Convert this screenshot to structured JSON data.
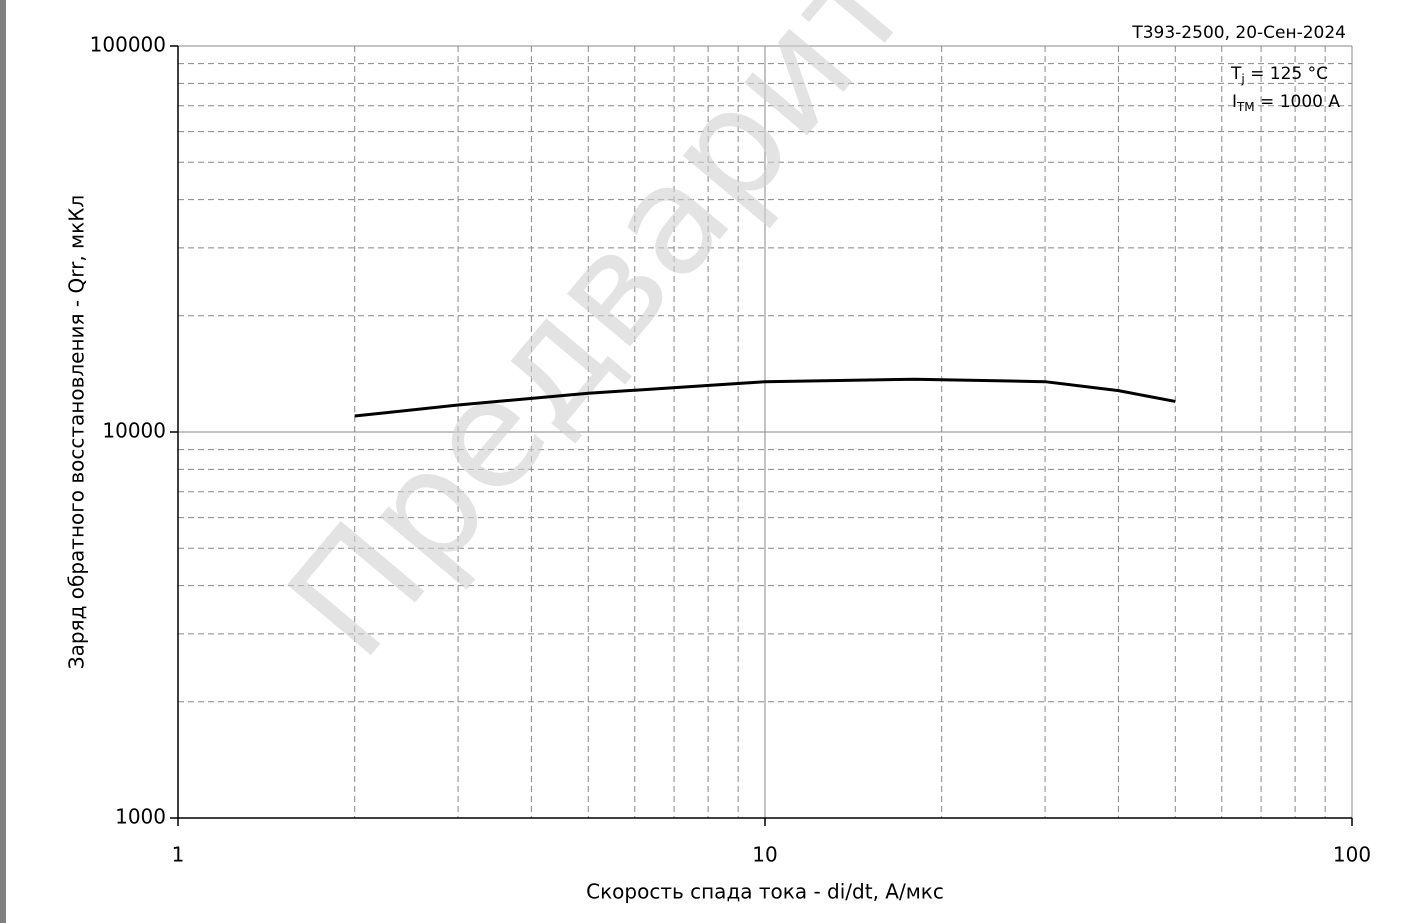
{
  "chart_data": {
    "type": "line",
    "watermark": "Предварительные",
    "annotation_top": "Т393-2500, 20-Сен-2024",
    "annotation_tj": {
      "symbol": "T",
      "sub": "j",
      "text": " = 125 °C"
    },
    "annotation_itm": {
      "symbol": "I",
      "sub": "TM",
      "text": " = 1000 A"
    },
    "xlabel": "Скорость спада тока - di/dt, А/мкс",
    "ylabel": "Заряд обратного восстановления - Qrr, мкКл",
    "xscale": "log",
    "yscale": "log",
    "xlim": [
      1,
      100
    ],
    "ylim": [
      1000,
      100000
    ],
    "xticks": [
      1,
      10,
      100
    ],
    "yticks": [
      1000,
      10000,
      100000
    ],
    "xminor": [
      2,
      3,
      4,
      5,
      6,
      7,
      8,
      9,
      20,
      30,
      40,
      50,
      60,
      70,
      80,
      90
    ],
    "yminor": [
      2000,
      3000,
      4000,
      5000,
      6000,
      7000,
      8000,
      9000,
      20000,
      30000,
      40000,
      50000,
      60000,
      70000,
      80000,
      90000
    ],
    "grid": true,
    "series": [
      {
        "name": "Qrr",
        "color": "#000000",
        "x": [
          2,
          3,
          5,
          10,
          18,
          30,
          40,
          50
        ],
        "values": [
          11000,
          11750,
          12600,
          13500,
          13700,
          13500,
          12800,
          12000
        ]
      }
    ]
  }
}
